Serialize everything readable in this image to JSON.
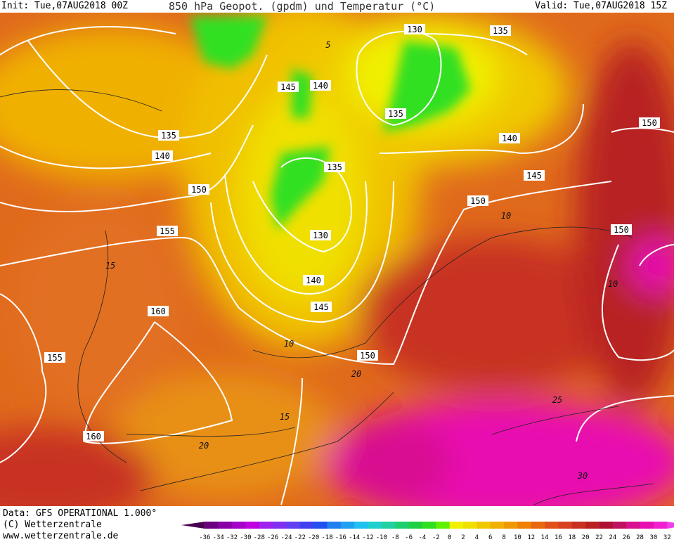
{
  "header": {
    "init": "Init: Tue,07AUG2018 00Z",
    "title": "850 hPa Geopot. (gpdm) und Temperatur (°C)",
    "valid": "Valid: Tue,07AUG2018 15Z"
  },
  "map": {
    "geopotential_labels": [
      "130",
      "135",
      "145",
      "140",
      "135",
      "140",
      "135",
      "140",
      "135",
      "150",
      "145",
      "150",
      "150",
      "150",
      "155",
      "130",
      "140",
      "145",
      "160",
      "155",
      "150",
      "160"
    ],
    "temperature_labels": [
      "5",
      "10",
      "15",
      "10",
      "15",
      "20",
      "20",
      "25",
      "30",
      "10"
    ]
  },
  "footer": {
    "data": "Data: GFS OPERATIONAL 1.000°",
    "copyright": "(C) Wetterzentrale",
    "url": "www.wetterzentrale.de"
  },
  "colorbar": {
    "labels": [
      "-36",
      "-34",
      "-32",
      "-30",
      "-28",
      "-26",
      "-24",
      "-22",
      "-20",
      "-18",
      "-16",
      "-14",
      "-12",
      "-10",
      "-8",
      "-6",
      "-4",
      "-2",
      "0",
      "2",
      "4",
      "6",
      "8",
      "10",
      "12",
      "14",
      "16",
      "18",
      "20",
      "22",
      "24",
      "26",
      "28",
      "30",
      "32"
    ],
    "colors": [
      "#4b0050",
      "#6a0080",
      "#8a00a8",
      "#a400c8",
      "#c000e0",
      "#a020f0",
      "#8030f0",
      "#6040f0",
      "#4040f0",
      "#2050f0",
      "#2080f0",
      "#20a0f0",
      "#20c0f0",
      "#20d0d0",
      "#20d0a0",
      "#20d070",
      "#20d040",
      "#30e020",
      "#60f000",
      "#f0f000",
      "#f0e000",
      "#f0c800",
      "#f0b000",
      "#f09800",
      "#f08000",
      "#e86810",
      "#e05018",
      "#d84020",
      "#c83020",
      "#b82020",
      "#b01030",
      "#c01060",
      "#d81090",
      "#e810b0",
      "#f020d0",
      "#f040e8"
    ]
  }
}
